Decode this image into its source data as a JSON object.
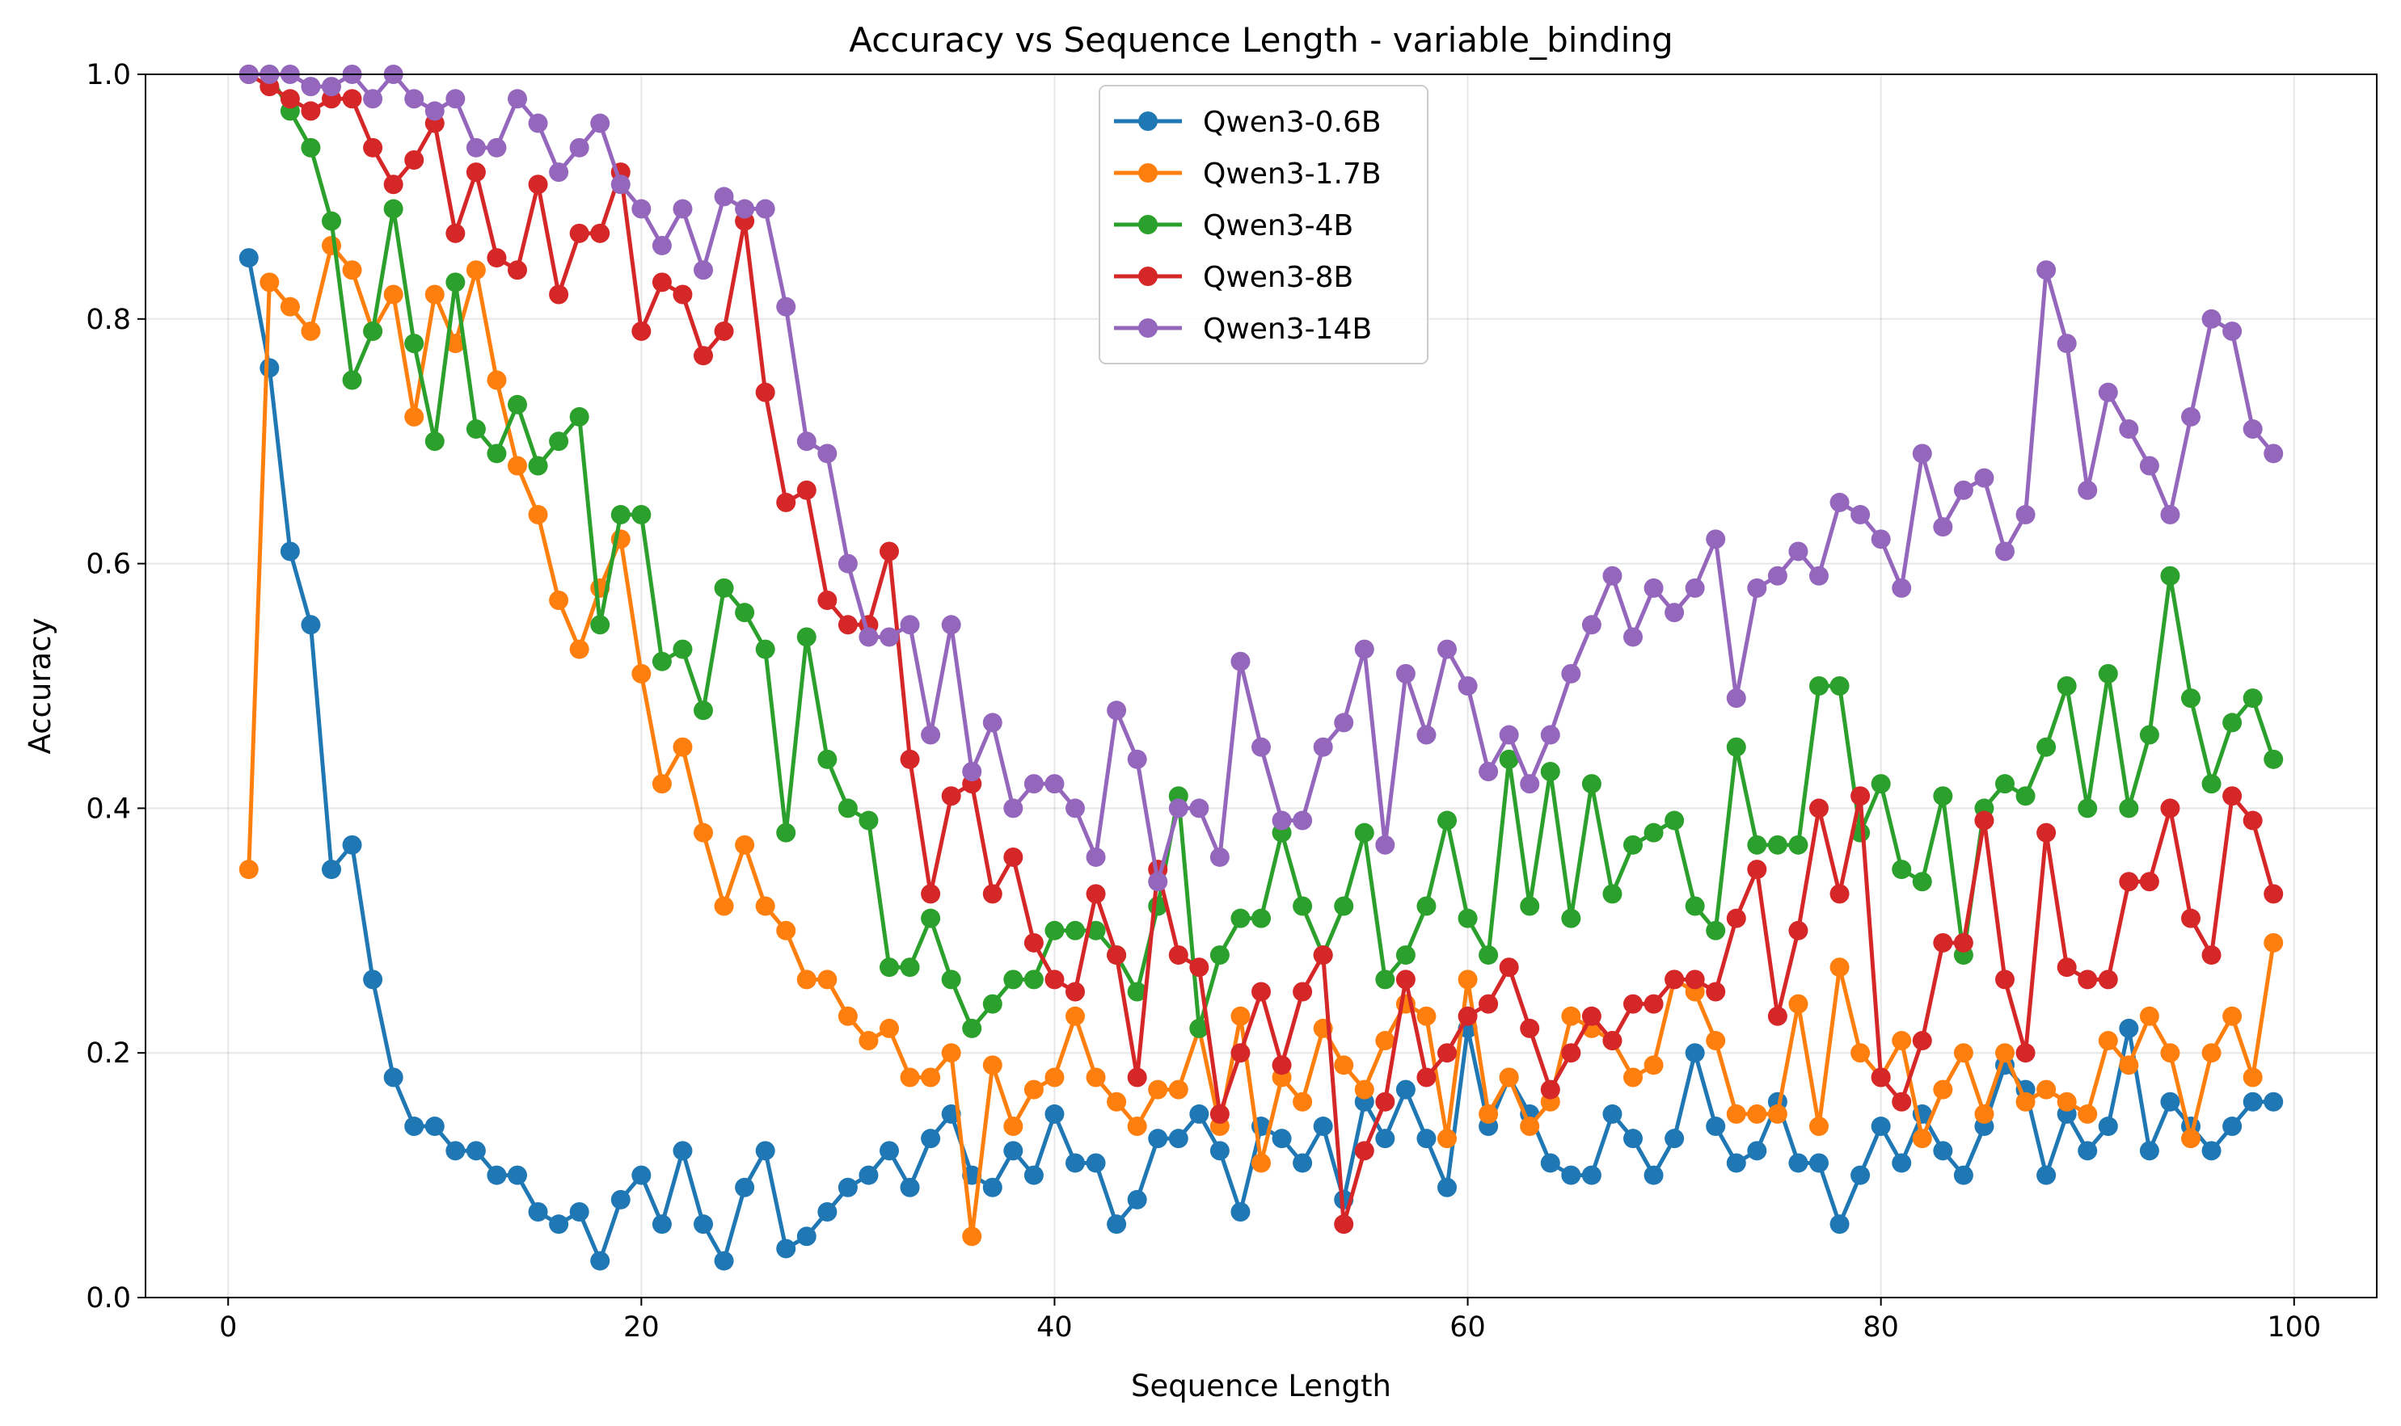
{
  "chart_data": {
    "type": "line",
    "title": "Accuracy vs Sequence Length - variable_binding",
    "xlabel": "Sequence Length",
    "ylabel": "Accuracy",
    "xlim": [
      -4,
      104
    ],
    "ylim": [
      0.0,
      1.0
    ],
    "xticks": [
      "0",
      "20",
      "40",
      "60",
      "80",
      "100"
    ],
    "yticks": [
      "0.0",
      "0.2",
      "0.4",
      "0.6",
      "0.8",
      "1.0"
    ],
    "grid": true,
    "legend_position": "top-center",
    "x": [
      1,
      2,
      3,
      4,
      5,
      6,
      7,
      8,
      9,
      10,
      11,
      12,
      13,
      14,
      15,
      16,
      17,
      18,
      19,
      20,
      21,
      22,
      23,
      24,
      25,
      26,
      27,
      28,
      29,
      30,
      31,
      32,
      33,
      34,
      35,
      36,
      37,
      38,
      39,
      40,
      41,
      42,
      43,
      44,
      45,
      46,
      47,
      48,
      49,
      50,
      51,
      52,
      53,
      54,
      55,
      56,
      57,
      58,
      59,
      60,
      61,
      62,
      63,
      64,
      65,
      66,
      67,
      68,
      69,
      70,
      71,
      72,
      73,
      74,
      75,
      76,
      77,
      78,
      79,
      80,
      81,
      82,
      83,
      84,
      85,
      86,
      87,
      88,
      89,
      90,
      91,
      92,
      93,
      94,
      95,
      96,
      97,
      98,
      99
    ],
    "series": [
      {
        "name": "Qwen3-0.6B",
        "color": "#1f77b4",
        "values": [
          0.85,
          0.76,
          0.61,
          0.55,
          0.35,
          0.37,
          0.26,
          0.18,
          0.14,
          0.14,
          0.12,
          0.12,
          0.1,
          0.1,
          0.07,
          0.06,
          0.07,
          0.03,
          0.08,
          0.1,
          0.06,
          0.12,
          0.06,
          0.03,
          0.09,
          0.12,
          0.04,
          0.05,
          0.07,
          0.09,
          0.1,
          0.12,
          0.09,
          0.13,
          0.15,
          0.1,
          0.09,
          0.12,
          0.1,
          0.15,
          0.11,
          0.11,
          0.06,
          0.08,
          0.13,
          0.13,
          0.15,
          0.12,
          0.07,
          0.14,
          0.13,
          0.11,
          0.14,
          0.08,
          0.16,
          0.13,
          0.17,
          0.13,
          0.09,
          0.22,
          0.14,
          0.18,
          0.15,
          0.11,
          0.1,
          0.1,
          0.15,
          0.13,
          0.1,
          0.13,
          0.2,
          0.14,
          0.11,
          0.12,
          0.16,
          0.11,
          0.11,
          0.06,
          0.1,
          0.14,
          0.11,
          0.15,
          0.12,
          0.1,
          0.14,
          0.19,
          0.17,
          0.1,
          0.15,
          0.12,
          0.14,
          0.22,
          0.12,
          0.16,
          0.14,
          0.12,
          0.14,
          0.16,
          0.16
        ]
      },
      {
        "name": "Qwen3-1.7B",
        "color": "#ff7f0e",
        "values": [
          0.35,
          0.83,
          0.81,
          0.79,
          0.86,
          0.84,
          0.79,
          0.82,
          0.72,
          0.82,
          0.78,
          0.84,
          0.75,
          0.68,
          0.64,
          0.57,
          0.53,
          0.58,
          0.62,
          0.51,
          0.42,
          0.45,
          0.38,
          0.32,
          0.37,
          0.32,
          0.3,
          0.26,
          0.26,
          0.23,
          0.21,
          0.22,
          0.18,
          0.18,
          0.2,
          0.05,
          0.19,
          0.14,
          0.17,
          0.18,
          0.23,
          0.18,
          0.16,
          0.14,
          0.17,
          0.17,
          0.22,
          0.14,
          0.23,
          0.11,
          0.18,
          0.16,
          0.22,
          0.19,
          0.17,
          0.21,
          0.24,
          0.23,
          0.13,
          0.26,
          0.15,
          0.18,
          0.14,
          0.16,
          0.23,
          0.22,
          0.21,
          0.18,
          0.19,
          0.26,
          0.25,
          0.21,
          0.15,
          0.15,
          0.15,
          0.24,
          0.14,
          0.27,
          0.2,
          0.18,
          0.21,
          0.13,
          0.17,
          0.2,
          0.15,
          0.2,
          0.16,
          0.17,
          0.16,
          0.15,
          0.21,
          0.19,
          0.23,
          0.2,
          0.13,
          0.2,
          0.23,
          0.18,
          0.29
        ]
      },
      {
        "name": "Qwen3-4B",
        "color": "#2ca02c",
        "values": [
          1.0,
          1.0,
          0.97,
          0.94,
          0.88,
          0.75,
          0.79,
          0.89,
          0.78,
          0.7,
          0.83,
          0.71,
          0.69,
          0.73,
          0.68,
          0.7,
          0.72,
          0.55,
          0.64,
          0.64,
          0.52,
          0.53,
          0.48,
          0.58,
          0.56,
          0.53,
          0.38,
          0.54,
          0.44,
          0.4,
          0.39,
          0.27,
          0.27,
          0.31,
          0.26,
          0.22,
          0.24,
          0.26,
          0.26,
          0.3,
          0.3,
          0.3,
          0.28,
          0.25,
          0.32,
          0.41,
          0.22,
          0.28,
          0.31,
          0.31,
          0.38,
          0.32,
          0.28,
          0.32,
          0.38,
          0.26,
          0.28,
          0.32,
          0.39,
          0.31,
          0.28,
          0.44,
          0.32,
          0.43,
          0.31,
          0.42,
          0.33,
          0.37,
          0.38,
          0.39,
          0.32,
          0.3,
          0.45,
          0.37,
          0.37,
          0.37,
          0.5,
          0.5,
          0.38,
          0.42,
          0.35,
          0.34,
          0.41,
          0.28,
          0.4,
          0.42,
          0.41,
          0.45,
          0.5,
          0.4,
          0.51,
          0.4,
          0.46,
          0.59,
          0.49,
          0.42,
          0.47,
          0.49,
          0.44
        ]
      },
      {
        "name": "Qwen3-8B",
        "color": "#d62728",
        "values": [
          1.0,
          0.99,
          0.98,
          0.97,
          0.98,
          0.98,
          0.94,
          0.91,
          0.93,
          0.96,
          0.87,
          0.92,
          0.85,
          0.84,
          0.91,
          0.82,
          0.87,
          0.87,
          0.92,
          0.79,
          0.83,
          0.82,
          0.77,
          0.79,
          0.88,
          0.74,
          0.65,
          0.66,
          0.57,
          0.55,
          0.55,
          0.61,
          0.44,
          0.33,
          0.41,
          0.42,
          0.33,
          0.36,
          0.29,
          0.26,
          0.25,
          0.33,
          0.28,
          0.18,
          0.35,
          0.28,
          0.27,
          0.15,
          0.2,
          0.25,
          0.19,
          0.25,
          0.28,
          0.06,
          0.12,
          0.16,
          0.26,
          0.18,
          0.2,
          0.23,
          0.24,
          0.27,
          0.22,
          0.17,
          0.2,
          0.23,
          0.21,
          0.24,
          0.24,
          0.26,
          0.26,
          0.25,
          0.31,
          0.35,
          0.23,
          0.3,
          0.4,
          0.33,
          0.41,
          0.18,
          0.16,
          0.21,
          0.29,
          0.29,
          0.39,
          0.26,
          0.2,
          0.38,
          0.27,
          0.26,
          0.26,
          0.34,
          0.34,
          0.4,
          0.31,
          0.28,
          0.41,
          0.39,
          0.33
        ]
      },
      {
        "name": "Qwen3-14B",
        "color": "#9467bd",
        "values": [
          1.0,
          1.0,
          1.0,
          0.99,
          0.99,
          1.0,
          0.98,
          1.0,
          0.98,
          0.97,
          0.98,
          0.94,
          0.94,
          0.98,
          0.96,
          0.92,
          0.94,
          0.96,
          0.91,
          0.89,
          0.86,
          0.89,
          0.84,
          0.9,
          0.89,
          0.89,
          0.81,
          0.7,
          0.69,
          0.6,
          0.54,
          0.54,
          0.55,
          0.46,
          0.55,
          0.43,
          0.47,
          0.4,
          0.42,
          0.42,
          0.4,
          0.36,
          0.48,
          0.44,
          0.34,
          0.4,
          0.4,
          0.36,
          0.52,
          0.45,
          0.39,
          0.39,
          0.45,
          0.47,
          0.53,
          0.37,
          0.51,
          0.46,
          0.53,
          0.5,
          0.43,
          0.46,
          0.42,
          0.46,
          0.51,
          0.55,
          0.59,
          0.54,
          0.58,
          0.56,
          0.58,
          0.62,
          0.49,
          0.58,
          0.59,
          0.61,
          0.59,
          0.65,
          0.64,
          0.62,
          0.58,
          0.69,
          0.63,
          0.66,
          0.67,
          0.61,
          0.64,
          0.84,
          0.78,
          0.66,
          0.74,
          0.71,
          0.68,
          0.64,
          0.72,
          0.8,
          0.79,
          0.71,
          0.69
        ]
      }
    ]
  }
}
